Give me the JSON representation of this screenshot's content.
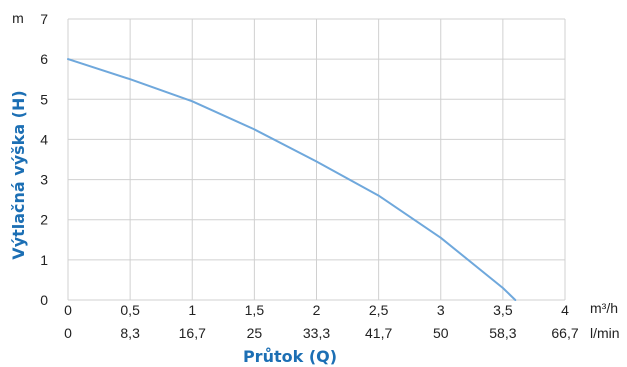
{
  "chart_data": {
    "type": "line",
    "title": "",
    "xlabel": "Průtok (Q)",
    "ylabel": "Výtlačná výška (H)",
    "y_unit": "m",
    "x_units": [
      "m³/h",
      "l/min"
    ],
    "xlim": [
      0,
      4
    ],
    "ylim": [
      0,
      7
    ],
    "grid": true,
    "x_ticks": [
      "0",
      "0,5",
      "1",
      "1,5",
      "2",
      "2,5",
      "3",
      "3,5",
      "4"
    ],
    "x_ticks_secondary": [
      "0",
      "8,3",
      "16,7",
      "25",
      "33,3",
      "41,7",
      "50",
      "58,3",
      "66,7"
    ],
    "y_ticks": [
      "0",
      "1",
      "2",
      "3",
      "4",
      "5",
      "6",
      "7"
    ],
    "series": [
      {
        "color": "#6fa8dc",
        "x": [
          0,
          0.5,
          1,
          1.5,
          2,
          2.5,
          3,
          3.5,
          3.6
        ],
        "y": [
          6.0,
          5.5,
          4.95,
          4.25,
          3.45,
          2.6,
          1.55,
          0.3,
          0.0
        ]
      }
    ]
  }
}
